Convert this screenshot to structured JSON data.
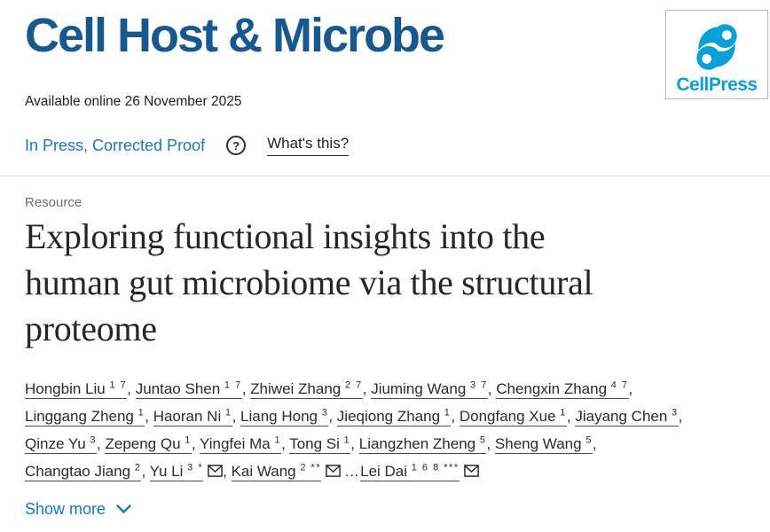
{
  "header": {
    "journal_title": "Cell Host & Microbe",
    "publisher_logo_text": "CellPress"
  },
  "meta": {
    "available_online": "Available online 26 November 2025",
    "status_label": "In Press, Corrected Proof",
    "help_icon_glyph": "?",
    "whats_this_label": "What's this?"
  },
  "article": {
    "content_type": "Resource",
    "title": "Exploring functional insights into the human gut microbiome via the structural proteome",
    "title_lines": [
      "Exploring functional insights into the",
      "human gut microbiome via the structural",
      "proteome"
    ]
  },
  "authors": {
    "rows": [
      [
        {
          "name": "Hongbin Liu",
          "sup": "1 7",
          "sep": ", "
        },
        {
          "name": "Juntao Shen",
          "sup": "1 7",
          "sep": ", "
        },
        {
          "name": "Zhiwei Zhang",
          "sup": "2 7",
          "sep": ", "
        },
        {
          "name": "Jiuming Wang",
          "sup": "3 7",
          "sep": ", "
        },
        {
          "name": "Chengxin Zhang",
          "sup": "4 7",
          "sep": ","
        }
      ],
      [
        {
          "name": "Linggang Zheng",
          "sup": "1",
          "sep": ", "
        },
        {
          "name": "Haoran Ni",
          "sup": "1",
          "sep": ", "
        },
        {
          "name": "Liang Hong",
          "sup": "3",
          "sep": ", "
        },
        {
          "name": "Jieqiong Zhang",
          "sup": "1",
          "sep": ", "
        },
        {
          "name": "Dongfang Xue",
          "sup": "1",
          "sep": ", "
        },
        {
          "name": "Jiayang Chen",
          "sup": "3",
          "sep": ","
        }
      ],
      [
        {
          "name": "Qinze Yu",
          "sup": "3",
          "sep": ", "
        },
        {
          "name": "Zepeng Qu",
          "sup": "1",
          "sep": ", "
        },
        {
          "name": "Yingfei Ma",
          "sup": "1",
          "sep": ", "
        },
        {
          "name": "Tong Si",
          "sup": "1",
          "sep": ", "
        },
        {
          "name": "Liangzhen Zheng",
          "sup": "5",
          "sep": ", "
        },
        {
          "name": "Sheng Wang",
          "sup": "5",
          "sep": ","
        }
      ],
      [
        {
          "name": "Changtao Jiang",
          "sup": "2",
          "sep": ", "
        },
        {
          "name": "Yu Li",
          "sup": "3 *",
          "envelope": true,
          "sep": ", "
        },
        {
          "name": "Kai Wang",
          "sup": "2 **",
          "envelope": true,
          "sep": ""
        },
        {
          "name": "Lei Dai",
          "sup": "1 6 8 ***",
          "envelope": true,
          "pre": "…",
          "sep": ""
        }
      ]
    ]
  },
  "actions": {
    "show_more_label": "Show more"
  },
  "colors": {
    "journal_blue": "#17598f",
    "cellpress_blue": "#09a0da",
    "link_blue": "#1878bf",
    "text_dark": "#2b2b2b",
    "muted_gray": "#6f6f6f"
  }
}
